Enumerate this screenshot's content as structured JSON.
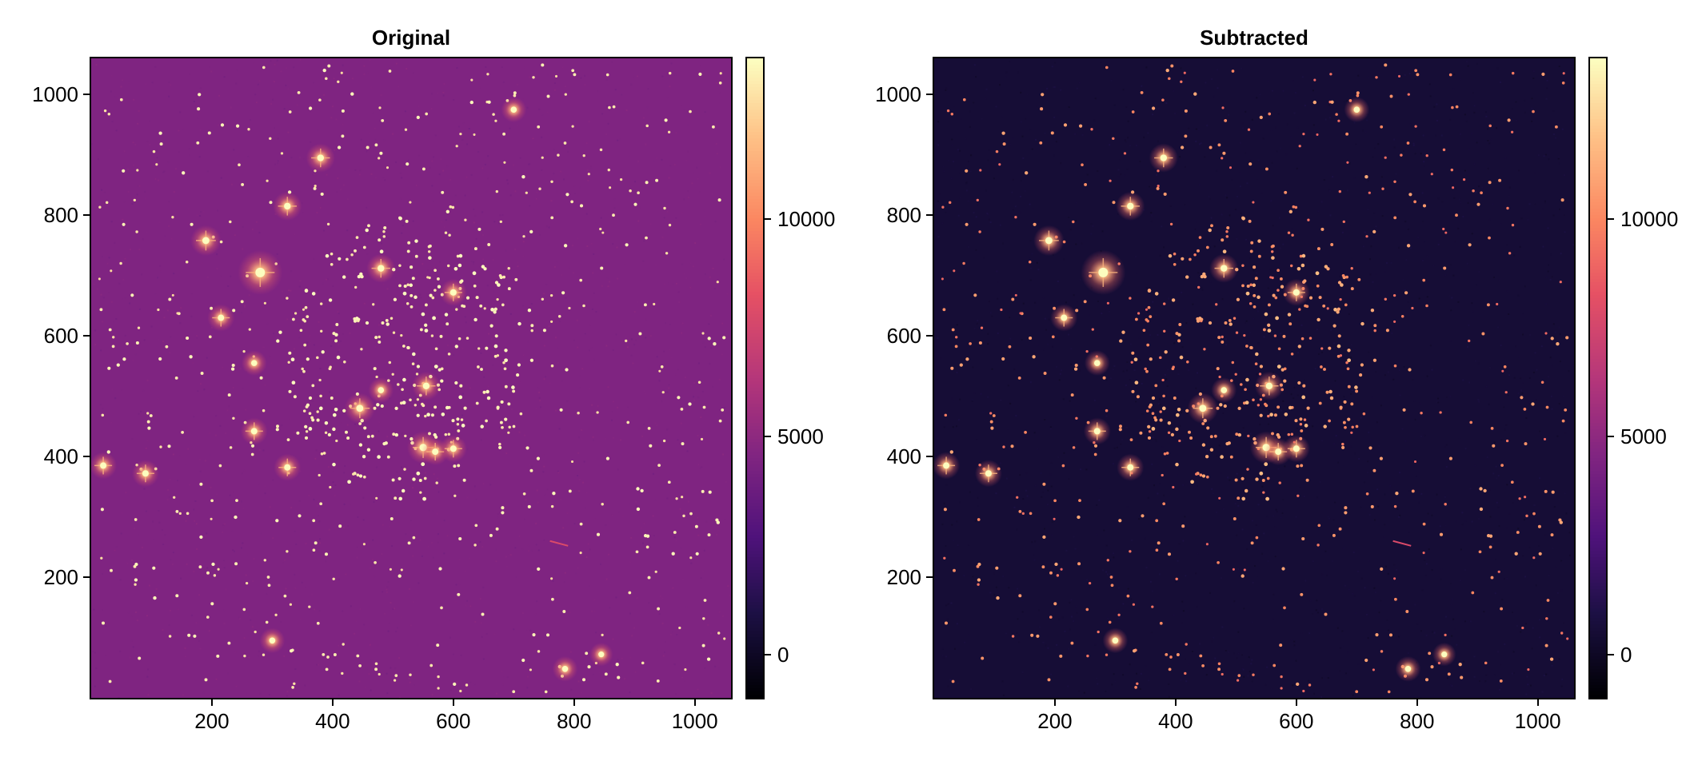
{
  "chart_data": [
    {
      "type": "heatmap",
      "title": "Original",
      "colormap": "magma",
      "background_level": 4500,
      "xlim": [
        0,
        1060
      ],
      "ylim": [
        0,
        1060
      ],
      "x_ticks": [
        200,
        400,
        600,
        800,
        1000
      ],
      "x_tick_labels": [
        "200",
        "400",
        "600",
        "800",
        "1000"
      ],
      "y_ticks": [
        200,
        400,
        600,
        800,
        1000
      ],
      "y_tick_labels": [
        "200",
        "400",
        "600",
        "800",
        "1000"
      ],
      "colorbar": {
        "range": [
          -1000,
          13700
        ],
        "ticks": [
          0,
          5000,
          10000
        ],
        "tick_labels": [
          "0",
          "5000",
          "10000"
        ]
      }
    },
    {
      "type": "heatmap",
      "title": "Subtracted",
      "colormap": "magma",
      "background_level": 500,
      "xlim": [
        0,
        1060
      ],
      "ylim": [
        0,
        1060
      ],
      "x_ticks": [
        200,
        400,
        600,
        800,
        1000
      ],
      "x_tick_labels": [
        "200",
        "400",
        "600",
        "800",
        "1000"
      ],
      "y_ticks": [
        200,
        400,
        600,
        800,
        1000
      ],
      "y_tick_labels": [
        "200",
        "400",
        "600",
        "800",
        "1000"
      ],
      "colorbar": {
        "range": [
          -1000,
          13700
        ],
        "ticks": [
          0,
          5000,
          10000
        ],
        "tick_labels": [
          "0",
          "5000",
          "10000"
        ]
      }
    }
  ],
  "bright_stars": [
    {
      "x": 280,
      "y": 705,
      "flux": 1.0
    },
    {
      "x": 190,
      "y": 758,
      "flux": 0.6
    },
    {
      "x": 325,
      "y": 815,
      "flux": 0.55
    },
    {
      "x": 380,
      "y": 895,
      "flux": 0.55
    },
    {
      "x": 215,
      "y": 630,
      "flux": 0.5
    },
    {
      "x": 480,
      "y": 712,
      "flux": 0.55
    },
    {
      "x": 600,
      "y": 672,
      "flux": 0.5
    },
    {
      "x": 445,
      "y": 480,
      "flux": 0.6
    },
    {
      "x": 550,
      "y": 415,
      "flux": 0.65
    },
    {
      "x": 570,
      "y": 408,
      "flux": 0.5
    },
    {
      "x": 600,
      "y": 413,
      "flux": 0.5
    },
    {
      "x": 555,
      "y": 517,
      "flux": 0.55
    },
    {
      "x": 270,
      "y": 442,
      "flux": 0.5
    },
    {
      "x": 325,
      "y": 382,
      "flux": 0.5
    },
    {
      "x": 20,
      "y": 385,
      "flux": 0.5
    },
    {
      "x": 90,
      "y": 372,
      "flux": 0.5
    },
    {
      "x": 700,
      "y": 975,
      "flux": 0.45
    },
    {
      "x": 300,
      "y": 95,
      "flux": 0.45
    },
    {
      "x": 785,
      "y": 48,
      "flux": 0.45
    },
    {
      "x": 845,
      "y": 72,
      "flux": 0.4
    },
    {
      "x": 270,
      "y": 555,
      "flux": 0.45
    },
    {
      "x": 480,
      "y": 510,
      "flux": 0.45
    }
  ],
  "streak": {
    "x1": 760,
    "y1": 260,
    "x2": 790,
    "y2": 252
  }
}
